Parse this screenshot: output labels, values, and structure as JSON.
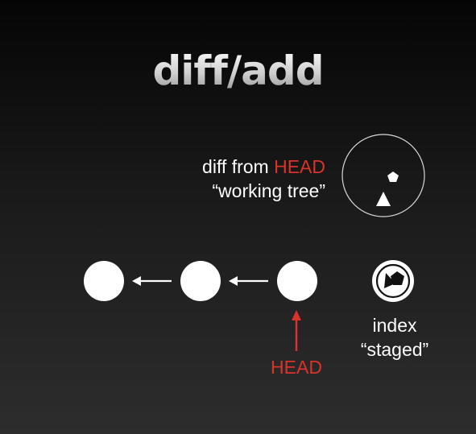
{
  "slide": {
    "title": "diff/add"
  },
  "working_tree": {
    "line1_prefix": "diff from ",
    "line1_highlight": "HEAD",
    "line2": "“working tree”"
  },
  "index": {
    "line1": "index",
    "line2": "“staged”"
  },
  "head_label": "HEAD",
  "colors": {
    "accent_red": "#d9332b",
    "foreground": "#ffffff"
  }
}
